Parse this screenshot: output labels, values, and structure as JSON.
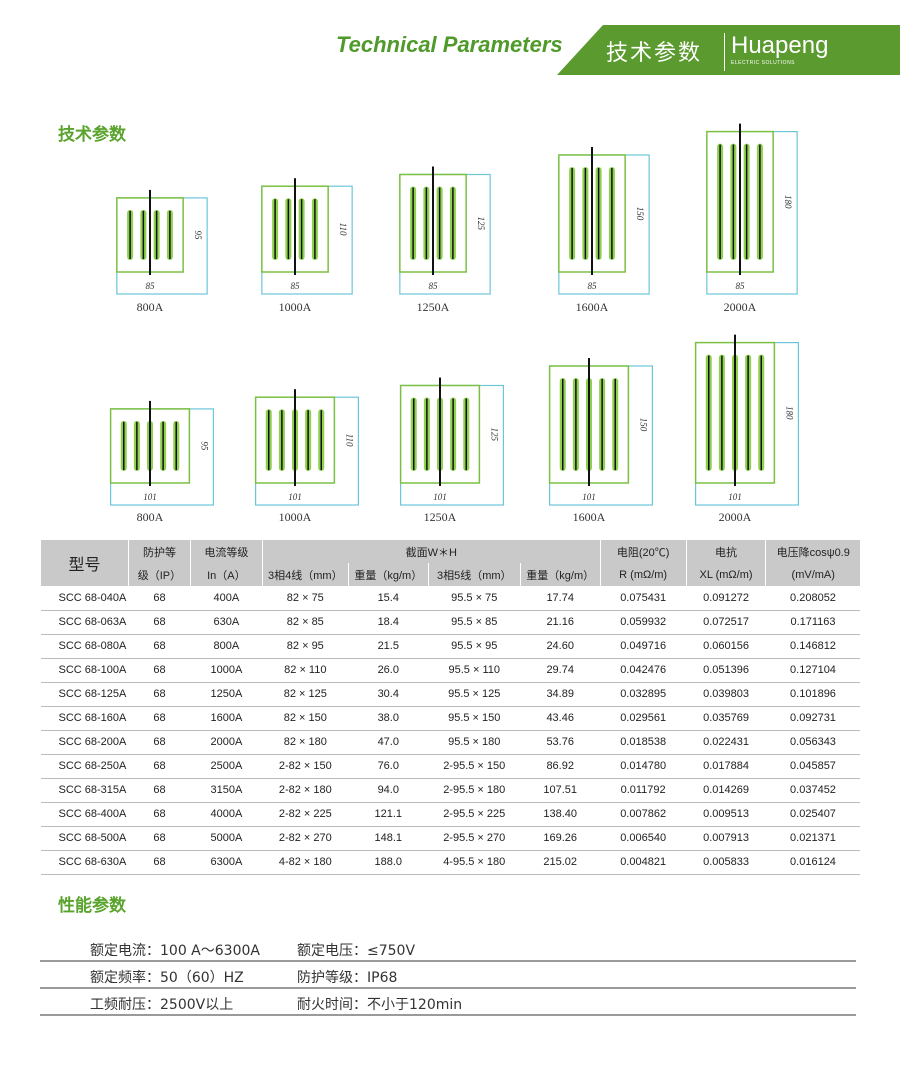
{
  "header": {
    "title_en": "Technical Parameters",
    "title_cn": "技术参数",
    "logo": "Huapeng",
    "logo_sub": "ELECTRIC SOLUTIONS"
  },
  "section1": "技术参数",
  "section2": "性能参数",
  "diagrams_row1": [
    {
      "label": "800A",
      "width": "85",
      "height": "95",
      "w": 85,
      "h": 95,
      "bars": 4
    },
    {
      "label": "1000A",
      "width": "85",
      "height": "110",
      "w": 85,
      "h": 110,
      "bars": 4
    },
    {
      "label": "1250A",
      "width": "85",
      "height": "125",
      "w": 85,
      "h": 125,
      "bars": 4
    },
    {
      "label": "1600A",
      "width": "85",
      "height": "150",
      "w": 85,
      "h": 150,
      "bars": 4
    },
    {
      "label": "2000A",
      "width": "85",
      "height": "180",
      "w": 85,
      "h": 180,
      "bars": 4
    }
  ],
  "diagrams_row2": [
    {
      "label": "800A",
      "width": "101",
      "height": "95",
      "w": 101,
      "h": 95,
      "bars": 5
    },
    {
      "label": "1000A",
      "width": "101",
      "height": "110",
      "w": 101,
      "h": 110,
      "bars": 5
    },
    {
      "label": "1250A",
      "width": "101",
      "height": "125",
      "w": 101,
      "h": 125,
      "bars": 5
    },
    {
      "label": "1600A",
      "width": "101",
      "height": "150",
      "w": 101,
      "h": 150,
      "bars": 5
    },
    {
      "label": "2000A",
      "width": "101",
      "height": "180",
      "w": 101,
      "h": 180,
      "bars": 5
    }
  ],
  "table": {
    "h_model": "型号",
    "h_ip1": "防护等",
    "h_ip2": "级（IP）",
    "h_cur1": "电流等级",
    "h_cur2": "In（A）",
    "h_section": "截面W＊H",
    "h_3p4": "3相4线（mm）",
    "h_w1": "重量（kg/m）",
    "h_3p5": "3相5线（mm）",
    "h_w2": "重量（kg/m）",
    "h_r1": "电阻(20℃)",
    "h_r2": "R (mΩ/m)",
    "h_x1": "电抗",
    "h_x2": "XL (mΩ/m)",
    "h_v1": "电压降cosψ0.9",
    "h_v2": "(mV/mA)",
    "rows": [
      [
        "SCC 68-040A",
        "68",
        "400A",
        "82 × 75",
        "15.4",
        "95.5 × 75",
        "17.74",
        "0.075431",
        "0.091272",
        "0.208052"
      ],
      [
        "SCC 68-063A",
        "68",
        "630A",
        "82 × 85",
        "18.4",
        "95.5 × 85",
        "21.16",
        "0.059932",
        "0.072517",
        "0.171163"
      ],
      [
        "SCC 68-080A",
        "68",
        "800A",
        "82 × 95",
        "21.5",
        "95.5 × 95",
        "24.60",
        "0.049716",
        "0.060156",
        "0.146812"
      ],
      [
        "SCC 68-100A",
        "68",
        "1000A",
        "82 × 110",
        "26.0",
        "95.5 × 110",
        "29.74",
        "0.042476",
        "0.051396",
        "0.127104"
      ],
      [
        "SCC 68-125A",
        "68",
        "1250A",
        "82 × 125",
        "30.4",
        "95.5 × 125",
        "34.89",
        "0.032895",
        "0.039803",
        "0.101896"
      ],
      [
        "SCC 68-160A",
        "68",
        "1600A",
        "82 × 150",
        "38.0",
        "95.5 × 150",
        "43.46",
        "0.029561",
        "0.035769",
        "0.092731"
      ],
      [
        "SCC 68-200A",
        "68",
        "2000A",
        "82 × 180",
        "47.0",
        "95.5 × 180",
        "53.76",
        "0.018538",
        "0.022431",
        "0.056343"
      ],
      [
        "SCC 68-250A",
        "68",
        "2500A",
        "2-82 × 150",
        "76.0",
        "2-95.5 × 150",
        "86.92",
        "0.014780",
        "0.017884",
        "0.045857"
      ],
      [
        "SCC 68-315A",
        "68",
        "3150A",
        "2-82 × 180",
        "94.0",
        "2-95.5 × 180",
        "107.51",
        "0.011792",
        "0.014269",
        "0.037452"
      ],
      [
        "SCC 68-400A",
        "68",
        "4000A",
        "2-82 × 225",
        "121.1",
        "2-95.5 × 225",
        "138.40",
        "0.007862",
        "0.009513",
        "0.025407"
      ],
      [
        "SCC 68-500A",
        "68",
        "5000A",
        "2-82 × 270",
        "148.1",
        "2-95.5 × 270",
        "169.26",
        "0.006540",
        "0.007913",
        "0.021371"
      ],
      [
        "SCC 68-630A",
        "68",
        "6300A",
        "4-82 × 180",
        "188.0",
        "4-95.5 × 180",
        "215.02",
        "0.004821",
        "0.005833",
        "0.016124"
      ]
    ]
  },
  "performance": [
    [
      "额定电流：100 A～6300A",
      "额定电压：≤750V"
    ],
    [
      "额定频率：50（60）HZ",
      "防护等级：IP68"
    ],
    [
      "工频耐压：2500V以上",
      "耐火时间：不小于120min"
    ]
  ]
}
